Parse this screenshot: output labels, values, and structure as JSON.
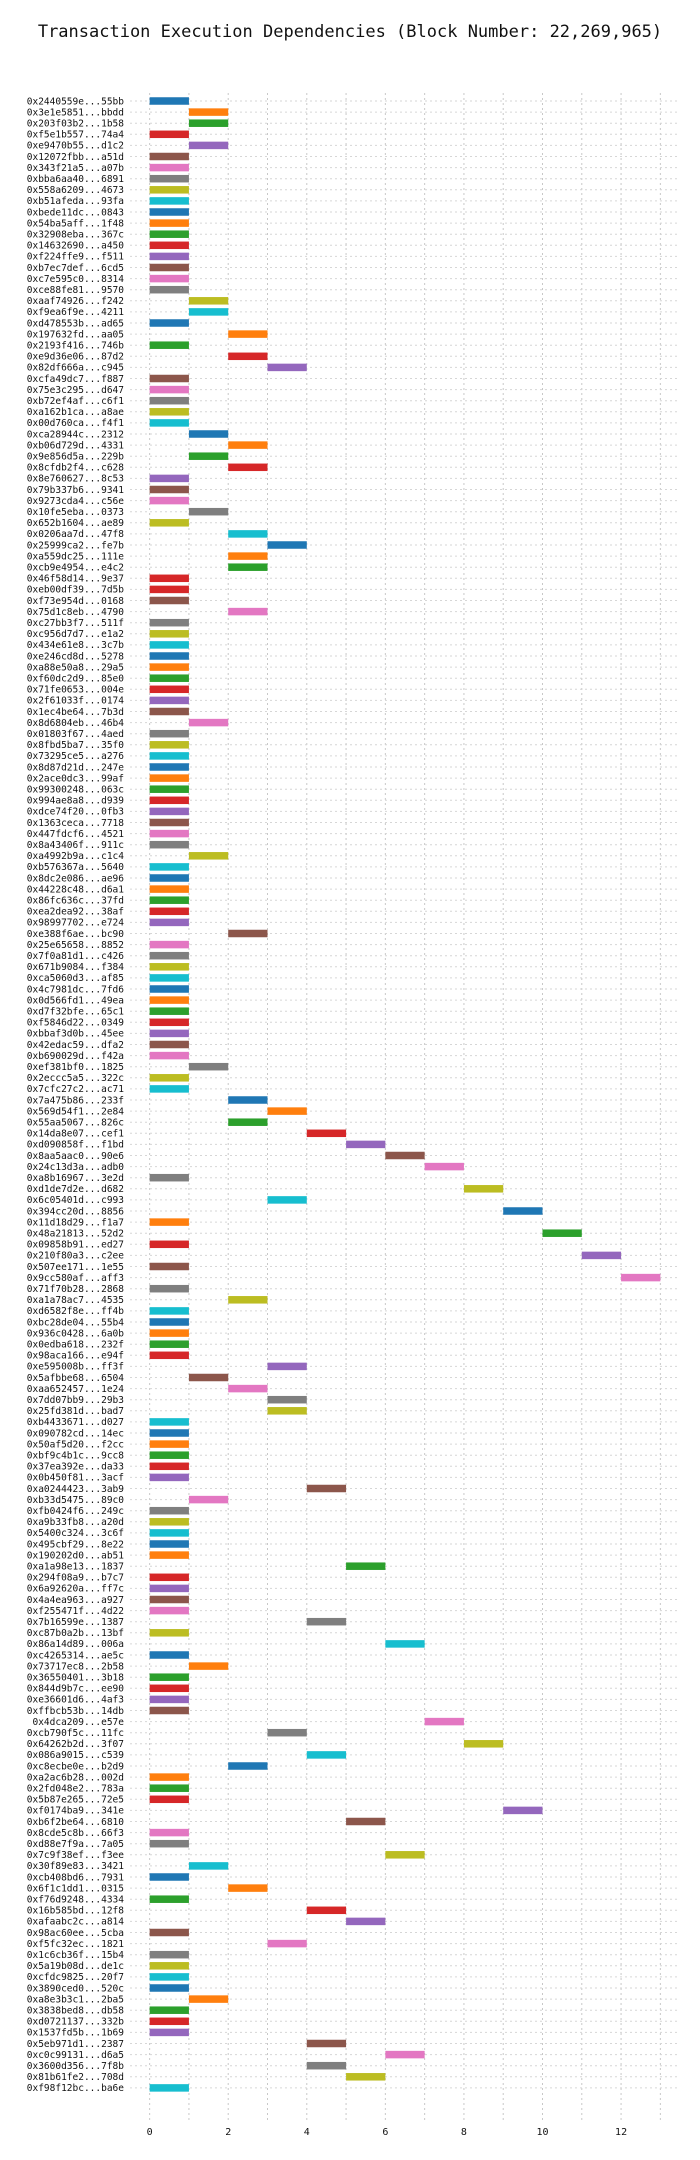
{
  "chart_data": {
    "type": "bar",
    "orientation": "horizontal-gantt",
    "title": "Transaction Execution Dependencies (Block Number: 22,269,965)",
    "xlabel": "",
    "ylabel": "",
    "xlim": [
      -0.5,
      13.5
    ],
    "x_ticks": [
      0,
      2,
      4,
      6,
      8,
      10,
      12
    ],
    "grid": true,
    "legend": "none",
    "palette": [
      "#1f77b4",
      "#ff7f0e",
      "#2ca02c",
      "#d62728",
      "#9467bd",
      "#8c564b",
      "#e377c2",
      "#7f7f7f",
      "#bcbd22",
      "#17becf"
    ],
    "rows": [
      {
        "label": "0x2440559e...55bb",
        "start": 0,
        "color": 0
      },
      {
        "label": "0x3e1e5851...bbdd",
        "start": 1,
        "color": 1
      },
      {
        "label": "0x203f03b2...1b58",
        "start": 1,
        "color": 2
      },
      {
        "label": "0xf5e1b557...74a4",
        "start": 0,
        "color": 3
      },
      {
        "label": "0xe9470b55...d1c2",
        "start": 1,
        "color": 4
      },
      {
        "label": "0x12072fbb...a51d",
        "start": 0,
        "color": 5
      },
      {
        "label": "0x343f21a5...a07b",
        "start": 0,
        "color": 6
      },
      {
        "label": "0xbba6aa40...6891",
        "start": 0,
        "color": 7
      },
      {
        "label": "0x558a6209...4673",
        "start": 0,
        "color": 8
      },
      {
        "label": "0xb51afeda...93fa",
        "start": 0,
        "color": 9
      },
      {
        "label": "0xbede11dc...0843",
        "start": 0,
        "color": 0
      },
      {
        "label": "0x54ba5aff...1f48",
        "start": 0,
        "color": 1
      },
      {
        "label": "0x32908eba...367c",
        "start": 0,
        "color": 2
      },
      {
        "label": "0x14632690...a450",
        "start": 0,
        "color": 3
      },
      {
        "label": "0xf224ffe9...f511",
        "start": 0,
        "color": 4
      },
      {
        "label": "0xb7ec7def...6cd5",
        "start": 0,
        "color": 5
      },
      {
        "label": "0xc7e595c0...8314",
        "start": 0,
        "color": 6
      },
      {
        "label": "0xce88fe81...9570",
        "start": 0,
        "color": 7
      },
      {
        "label": "0xaaf74926...f242",
        "start": 1,
        "color": 8
      },
      {
        "label": "0xf9ea6f9e...4211",
        "start": 1,
        "color": 9
      },
      {
        "label": "0xd478553b...ad65",
        "start": 0,
        "color": 0
      },
      {
        "label": "0x197632fd...aa05",
        "start": 2,
        "color": 1
      },
      {
        "label": "0x2193f416...746b",
        "start": 0,
        "color": 2
      },
      {
        "label": "0xe9d36e06...87d2",
        "start": 2,
        "color": 3
      },
      {
        "label": "0x82df666a...c945",
        "start": 3,
        "color": 4
      },
      {
        "label": "0xcfa49dc7...f887",
        "start": 0,
        "color": 5
      },
      {
        "label": "0x75e3c295...d647",
        "start": 0,
        "color": 6
      },
      {
        "label": "0xb72ef4af...c6f1",
        "start": 0,
        "color": 7
      },
      {
        "label": "0xa162b1ca...a8ae",
        "start": 0,
        "color": 8
      },
      {
        "label": "0x00d760ca...f4f1",
        "start": 0,
        "color": 9
      },
      {
        "label": "0xca28944c...2312",
        "start": 1,
        "color": 0
      },
      {
        "label": "0xb06d729d...4331",
        "start": 2,
        "color": 1
      },
      {
        "label": "0x9e856d5a...229b",
        "start": 1,
        "color": 2
      },
      {
        "label": "0x8cfdb2f4...c628",
        "start": 2,
        "color": 3
      },
      {
        "label": "0x8e760627...8c53",
        "start": 0,
        "color": 4
      },
      {
        "label": "0x79b337b6...9341",
        "start": 0,
        "color": 5
      },
      {
        "label": "0x9273cda4...c56e",
        "start": 0,
        "color": 6
      },
      {
        "label": "0x10fe5eba...0373",
        "start": 1,
        "color": 7
      },
      {
        "label": "0x652b1604...ae89",
        "start": 0,
        "color": 8
      },
      {
        "label": "0x0206aa7d...47f8",
        "start": 2,
        "color": 9
      },
      {
        "label": "0x25999ca2...fe7b",
        "start": 3,
        "color": 0
      },
      {
        "label": "0xa559dc25...111e",
        "start": 2,
        "color": 1
      },
      {
        "label": "0xcb9e4954...e4c2",
        "start": 2,
        "color": 2
      },
      {
        "label": "0x46f58d14...9e37",
        "start": 0,
        "color": 3
      },
      {
        "label": "0xeb00df39...7d5b",
        "start": 0,
        "color": 3
      },
      {
        "label": "0xf73e954d...0168",
        "start": 0,
        "color": 5
      },
      {
        "label": "0x75d1c8eb...4790",
        "start": 2,
        "color": 6
      },
      {
        "label": "0xc27bb3f7...511f",
        "start": 0,
        "color": 7
      },
      {
        "label": "0xc956d7d7...e1a2",
        "start": 0,
        "color": 8
      },
      {
        "label": "0x434e61e8...3c7b",
        "start": 0,
        "color": 9
      },
      {
        "label": "0xe246cd8d...5278",
        "start": 0,
        "color": 0
      },
      {
        "label": "0xa88e50a8...29a5",
        "start": 0,
        "color": 1
      },
      {
        "label": "0xf60dc2d9...85e0",
        "start": 0,
        "color": 2
      },
      {
        "label": "0x71fe0653...004e",
        "start": 0,
        "color": 3
      },
      {
        "label": "0x2f61033f...0174",
        "start": 0,
        "color": 4
      },
      {
        "label": "0x1ec4be64...7b3d",
        "start": 0,
        "color": 5
      },
      {
        "label": "0x8d6804eb...46b4",
        "start": 1,
        "color": 6
      },
      {
        "label": "0x01803f67...4aed",
        "start": 0,
        "color": 7
      },
      {
        "label": "0x8fbd5ba7...35f0",
        "start": 0,
        "color": 8
      },
      {
        "label": "0x73295ce5...a276",
        "start": 0,
        "color": 9
      },
      {
        "label": "0x8d87d21d...247e",
        "start": 0,
        "color": 0
      },
      {
        "label": "0x2ace0dc3...99af",
        "start": 0,
        "color": 1
      },
      {
        "label": "0x99300248...063c",
        "start": 0,
        "color": 2
      },
      {
        "label": "0x994ae8a8...d939",
        "start": 0,
        "color": 3
      },
      {
        "label": "0xdce74f20...0fb3",
        "start": 0,
        "color": 4
      },
      {
        "label": "0x1363ceca...7718",
        "start": 0,
        "color": 5
      },
      {
        "label": "0x447fdcf6...4521",
        "start": 0,
        "color": 6
      },
      {
        "label": "0x8a43406f...911c",
        "start": 0,
        "color": 7
      },
      {
        "label": "0xa4992b9a...c1c4",
        "start": 1,
        "color": 8
      },
      {
        "label": "0xb576367a...5640",
        "start": 0,
        "color": 9
      },
      {
        "label": "0x8dc2e086...ae96",
        "start": 0,
        "color": 0
      },
      {
        "label": "0x44228c48...d6a1",
        "start": 0,
        "color": 1
      },
      {
        "label": "0x86fc636c...37fd",
        "start": 0,
        "color": 2
      },
      {
        "label": "0xea2dea92...38af",
        "start": 0,
        "color": 3
      },
      {
        "label": "0x98997702...e724",
        "start": 0,
        "color": 4
      },
      {
        "label": "0xe388f6ae...bc90",
        "start": 2,
        "color": 5
      },
      {
        "label": "0x25e65658...8852",
        "start": 0,
        "color": 6
      },
      {
        "label": "0x7f0a81d1...c426",
        "start": 0,
        "color": 7
      },
      {
        "label": "0x671b9084...f384",
        "start": 0,
        "color": 8
      },
      {
        "label": "0xca5060d3...af85",
        "start": 0,
        "color": 9
      },
      {
        "label": "0x4c7981dc...7fd6",
        "start": 0,
        "color": 0
      },
      {
        "label": "0x0d566fd1...49ea",
        "start": 0,
        "color": 1
      },
      {
        "label": "0xd7f32bfe...65c1",
        "start": 0,
        "color": 2
      },
      {
        "label": "0xf5846d22...0349",
        "start": 0,
        "color": 3
      },
      {
        "label": "0xbbaf3d0b...45ee",
        "start": 0,
        "color": 4
      },
      {
        "label": "0x42edac59...dfa2",
        "start": 0,
        "color": 5
      },
      {
        "label": "0xb690029d...f42a",
        "start": 0,
        "color": 6
      },
      {
        "label": "0xef381bf0...1825",
        "start": 1,
        "color": 7
      },
      {
        "label": "0x2eccc5a5...322c",
        "start": 0,
        "color": 8
      },
      {
        "label": "0x7cfc27c2...ac71",
        "start": 0,
        "color": 9
      },
      {
        "label": "0x7a475b86...233f",
        "start": 2,
        "color": 0
      },
      {
        "label": "0x569d54f1...2e84",
        "start": 3,
        "color": 1
      },
      {
        "label": "0x55aa5067...826c",
        "start": 2,
        "color": 2
      },
      {
        "label": "0x14da8e07...cef1",
        "start": 4,
        "color": 3
      },
      {
        "label": "0xd090858f...f1bd",
        "start": 5,
        "color": 4
      },
      {
        "label": "0x8aa5aac0...90e6",
        "start": 6,
        "color": 5
      },
      {
        "label": "0x24c13d3a...adb0",
        "start": 7,
        "color": 6
      },
      {
        "label": "0xa8b16967...3e2d",
        "start": 0,
        "color": 7
      },
      {
        "label": "0xd1de7d2e...d682",
        "start": 8,
        "color": 8
      },
      {
        "label": "0x6c05401d...c993",
        "start": 3,
        "color": 9
      },
      {
        "label": "0x394cc20d...8856",
        "start": 9,
        "color": 0
      },
      {
        "label": "0x11d18d29...f1a7",
        "start": 0,
        "color": 1
      },
      {
        "label": "0x48a21813...52d2",
        "start": 10,
        "color": 2
      },
      {
        "label": "0x09858b91...ed27",
        "start": 0,
        "color": 3
      },
      {
        "label": "0x210f80a3...c2ee",
        "start": 11,
        "color": 4
      },
      {
        "label": "0x507ee171...1e55",
        "start": 0,
        "color": 5
      },
      {
        "label": "0x9cc580af...aff3",
        "start": 12,
        "color": 6
      },
      {
        "label": "0x71f70b28...2868",
        "start": 0,
        "color": 7
      },
      {
        "label": "0xa1a78ac7...4535",
        "start": 2,
        "color": 8
      },
      {
        "label": "0xd6582f8e...ff4b",
        "start": 0,
        "color": 9
      },
      {
        "label": "0xbc28de04...55b4",
        "start": 0,
        "color": 0
      },
      {
        "label": "0x936c0428...6a0b",
        "start": 0,
        "color": 1
      },
      {
        "label": "0x0edba618...232f",
        "start": 0,
        "color": 2
      },
      {
        "label": "0x98aca166...e94f",
        "start": 0,
        "color": 3
      },
      {
        "label": "0xe595008b...ff3f",
        "start": 3,
        "color": 4
      },
      {
        "label": "0x5afbbe68...6504",
        "start": 1,
        "color": 5
      },
      {
        "label": "0xaa652457...1e24",
        "start": 2,
        "color": 6
      },
      {
        "label": "0x7dd07bb9...29b3",
        "start": 3,
        "color": 7
      },
      {
        "label": "0x25fd381d...bad7",
        "start": 3,
        "color": 8
      },
      {
        "label": "0xb4433671...d027",
        "start": 0,
        "color": 9
      },
      {
        "label": "0x090782cd...14ec",
        "start": 0,
        "color": 0
      },
      {
        "label": "0x50af5d20...f2cc",
        "start": 0,
        "color": 1
      },
      {
        "label": "0xbf9c4b1c...9cc8",
        "start": 0,
        "color": 2
      },
      {
        "label": "0x37ea392e...da33",
        "start": 0,
        "color": 3
      },
      {
        "label": "0x0b450f81...3acf",
        "start": 0,
        "color": 4
      },
      {
        "label": "0xa0244423...3ab9",
        "start": 4,
        "color": 5
      },
      {
        "label": "0xb33d5475...89c0",
        "start": 1,
        "color": 6
      },
      {
        "label": "0xfb0424f6...249c",
        "start": 0,
        "color": 7
      },
      {
        "label": "0xa9b33fb8...a20d",
        "start": 0,
        "color": 8
      },
      {
        "label": "0x5400c324...3c6f",
        "start": 0,
        "color": 9
      },
      {
        "label": "0x495cbf29...8e22",
        "start": 0,
        "color": 0
      },
      {
        "label": "0x190202d0...ab51",
        "start": 0,
        "color": 1
      },
      {
        "label": "0xa1a98e13...1837",
        "start": 5,
        "color": 2
      },
      {
        "label": "0x294f08a9...b7c7",
        "start": 0,
        "color": 3
      },
      {
        "label": "0x6a92620a...ff7c",
        "start": 0,
        "color": 4
      },
      {
        "label": "0x4a4ea963...a927",
        "start": 0,
        "color": 5
      },
      {
        "label": "0xf255471f...4d22",
        "start": 0,
        "color": 6
      },
      {
        "label": "0x7b16599e...1387",
        "start": 4,
        "color": 7
      },
      {
        "label": "0xc87b0a2b...13bf",
        "start": 0,
        "color": 8
      },
      {
        "label": "0x86a14d89...006a",
        "start": 6,
        "color": 9
      },
      {
        "label": "0xc4265314...ae5c",
        "start": 0,
        "color": 0
      },
      {
        "label": "0x73717ec8...2b58",
        "start": 1,
        "color": 1
      },
      {
        "label": "0x36550401...3b18",
        "start": 0,
        "color": 2
      },
      {
        "label": "0x844d9b7c...ee90",
        "start": 0,
        "color": 3
      },
      {
        "label": "0xe36601d6...4af3",
        "start": 0,
        "color": 4
      },
      {
        "label": "0xffbcb53b...14db",
        "start": 0,
        "color": 5
      },
      {
        "label": "0x4dca209...e57e",
        "start": 7,
        "color": 6
      },
      {
        "label": "0xcb790f5c...11fc",
        "start": 3,
        "color": 7
      },
      {
        "label": "0x64262b2d...3f07",
        "start": 8,
        "color": 8
      },
      {
        "label": "0x086a9015...c539",
        "start": 4,
        "color": 9
      },
      {
        "label": "0xc8ecbe0e...b2d9",
        "start": 2,
        "color": 0
      },
      {
        "label": "0xa2ac6b28...002d",
        "start": 0,
        "color": 1
      },
      {
        "label": "0x2fd048e2...783a",
        "start": 0,
        "color": 2
      },
      {
        "label": "0x5b87e265...72e5",
        "start": 0,
        "color": 3
      },
      {
        "label": "0xf0174ba9...341e",
        "start": 9,
        "color": 4
      },
      {
        "label": "0xb6f2be64...6810",
        "start": 5,
        "color": 5
      },
      {
        "label": "0x8cde5c8b...66f3",
        "start": 0,
        "color": 6
      },
      {
        "label": "0xd88e7f9a...7a05",
        "start": 0,
        "color": 7
      },
      {
        "label": "0x7c9f38ef...f3ee",
        "start": 6,
        "color": 8
      },
      {
        "label": "0x30f89e83...3421",
        "start": 1,
        "color": 9
      },
      {
        "label": "0xcb408bd6...7931",
        "start": 0,
        "color": 0
      },
      {
        "label": "0x6f1c1dd1...0315",
        "start": 2,
        "color": 1
      },
      {
        "label": "0xf76d9248...4334",
        "start": 0,
        "color": 2
      },
      {
        "label": "0x16b585bd...12f8",
        "start": 4,
        "color": 3
      },
      {
        "label": "0xafaabc2c...a814",
        "start": 5,
        "color": 4
      },
      {
        "label": "0x98ac60ee...5cba",
        "start": 0,
        "color": 5
      },
      {
        "label": "0xf5fc32ec...1821",
        "start": 3,
        "color": 6
      },
      {
        "label": "0x1c6cb36f...15b4",
        "start": 0,
        "color": 7
      },
      {
        "label": "0x5a19b08d...de1c",
        "start": 0,
        "color": 8
      },
      {
        "label": "0xcfdc9825...20f7",
        "start": 0,
        "color": 9
      },
      {
        "label": "0x3890ced0...520c",
        "start": 0,
        "color": 0
      },
      {
        "label": "0xa8e3b3c1...2ba5",
        "start": 1,
        "color": 1
      },
      {
        "label": "0x3838bed8...db58",
        "start": 0,
        "color": 2
      },
      {
        "label": "0xd0721137...332b",
        "start": 0,
        "color": 3
      },
      {
        "label": "0x1537fd5b...1b69",
        "start": 0,
        "color": 4
      },
      {
        "label": "0x5eb971d1...2387",
        "start": 4,
        "color": 5
      },
      {
        "label": "0xc0c99131...d6a5",
        "start": 6,
        "color": 6
      },
      {
        "label": "0x3600d356...7f8b",
        "start": 4,
        "color": 7
      },
      {
        "label": "0x81b61fe2...708d",
        "start": 5,
        "color": 8
      },
      {
        "label": "0xf98f12bc...ba6e",
        "start": 0,
        "color": 9
      }
    ]
  }
}
